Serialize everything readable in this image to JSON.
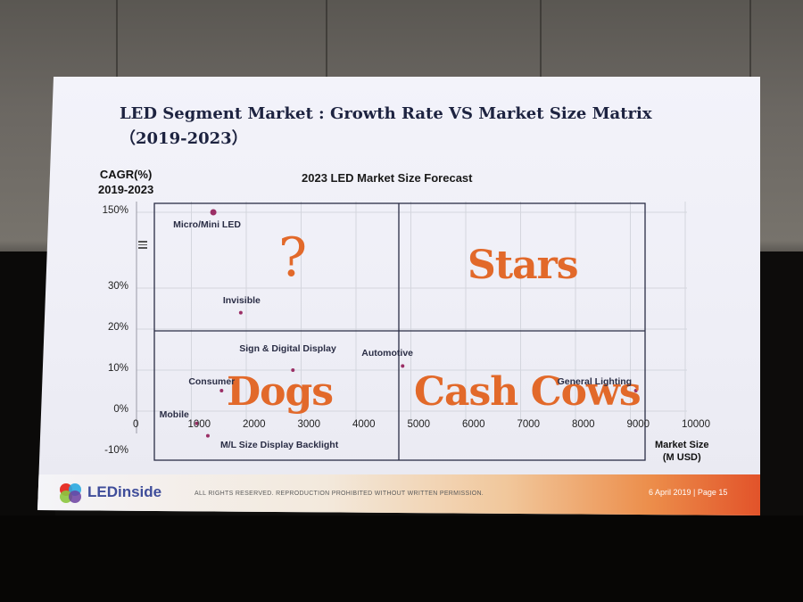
{
  "slide": {
    "title": "LED Segment Market : Growth Rate VS Market Size Matrix（2019-2023）",
    "brand": "LEDinside",
    "rights": "ALL RIGHTS RESERVED. REPRODUCTION PROHIBITED WITHOUT WRITTEN PERMISSION.",
    "page_info": "6 April 2019 | Page 15"
  },
  "quadrants": {
    "top_left": "?",
    "top_right": "Stars",
    "bottom_left": "Dogs",
    "bottom_right": "Cash Cows"
  },
  "chart_data": {
    "type": "scatter",
    "title": "2023 LED Market Size Forecast",
    "ylabel": "CAGR(%)\n2019-2023",
    "xlabel": "Market Size\n(M USD)",
    "xlim": [
      0,
      10000
    ],
    "xticks": [
      "0",
      "1000",
      "2000",
      "3000",
      "4000",
      "5000",
      "6000",
      "7000",
      "8000",
      "9000",
      "10000"
    ],
    "yticks": [
      "150%",
      "30%",
      "20%",
      "10%",
      "0%",
      "-10%"
    ],
    "y_axis_break": true,
    "grid": true,
    "points": [
      {
        "name": "Micro/Mini LED",
        "x": 1400,
        "y": 150
      },
      {
        "name": "Invisible",
        "x": 1900,
        "y": 24
      },
      {
        "name": "Sign & Digital Display",
        "x": 2850,
        "y": 10
      },
      {
        "name": "Automotive",
        "x": 4850,
        "y": 11
      },
      {
        "name": "Consumer",
        "x": 1550,
        "y": 5
      },
      {
        "name": "Mobile",
        "x": 1100,
        "y": -3
      },
      {
        "name": "M/L Size Display Backlight",
        "x": 1300,
        "y": -6
      },
      {
        "name": "General Lighting",
        "x": 9100,
        "y": 5
      }
    ]
  }
}
